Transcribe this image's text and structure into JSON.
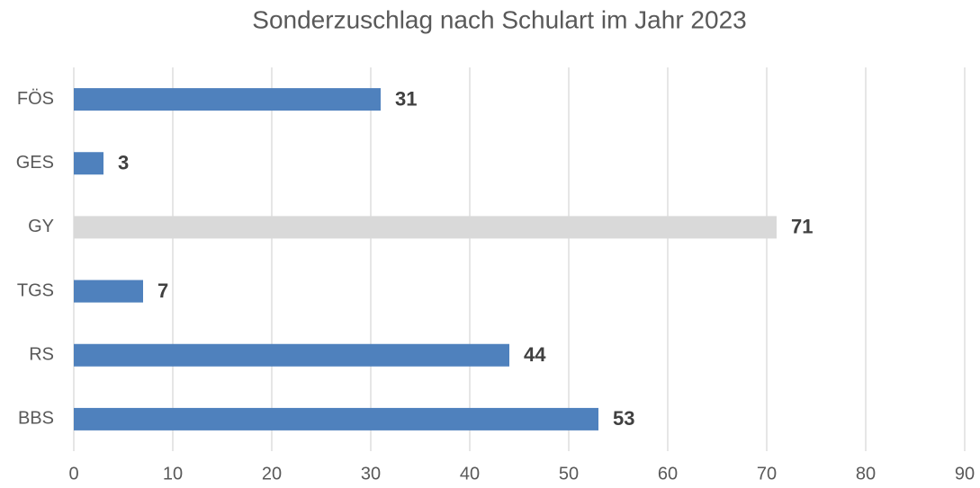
{
  "chart_data": {
    "type": "bar",
    "orientation": "horizontal",
    "title": "Sonderzuschlag nach Schulart im Jahr 2023",
    "categories": [
      "FÖS",
      "GES",
      "GY",
      "TGS",
      "RS",
      "BBS"
    ],
    "values": [
      31,
      3,
      71,
      7,
      44,
      53
    ],
    "colors": [
      "#4f81bd",
      "#4f81bd",
      "#d9d9d9",
      "#4f81bd",
      "#4f81bd",
      "#4f81bd"
    ],
    "xlim": [
      0,
      90
    ],
    "xticks": [
      0,
      10,
      20,
      30,
      40,
      50,
      60,
      70,
      80,
      90
    ],
    "grid": true
  }
}
